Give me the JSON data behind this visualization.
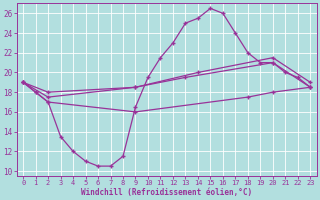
{
  "bg_color": "#b2dfdf",
  "line_color": "#993399",
  "grid_color": "#ffffff",
  "xlabel": "Windchill (Refroidissement éolien,°C)",
  "xlim": [
    -0.5,
    23.5
  ],
  "ylim": [
    9.5,
    27.0
  ],
  "yticks": [
    10,
    12,
    14,
    16,
    18,
    20,
    22,
    24,
    26
  ],
  "xticks": [
    0,
    1,
    2,
    3,
    4,
    5,
    6,
    7,
    8,
    9,
    10,
    11,
    12,
    13,
    14,
    15,
    16,
    17,
    18,
    19,
    20,
    21,
    22,
    23
  ],
  "s1_x": [
    0,
    1,
    2,
    3,
    4,
    5,
    6,
    7,
    8,
    9,
    10,
    11,
    12,
    13,
    14,
    15,
    16,
    17,
    18,
    19,
    20,
    21,
    22,
    23
  ],
  "s1_y": [
    19.0,
    18.0,
    17.0,
    13.5,
    12.0,
    11.0,
    10.5,
    10.5,
    11.5,
    16.5,
    19.5,
    21.5,
    23.0,
    25.0,
    25.5,
    26.5,
    26.0,
    24.0,
    22.0,
    21.0,
    21.0,
    20.0,
    19.5,
    18.5
  ],
  "s2_x": [
    0,
    2,
    9,
    13,
    20,
    23
  ],
  "s2_y": [
    19.0,
    18.0,
    18.5,
    19.5,
    21.0,
    18.5
  ],
  "s3_x": [
    0,
    2,
    9,
    14,
    20,
    23
  ],
  "s3_y": [
    19.0,
    17.5,
    18.5,
    20.0,
    21.5,
    19.0
  ],
  "s4_x": [
    0,
    1,
    2,
    9,
    18,
    20,
    23
  ],
  "s4_y": [
    19.0,
    18.0,
    17.0,
    16.0,
    17.5,
    18.0,
    18.5
  ]
}
